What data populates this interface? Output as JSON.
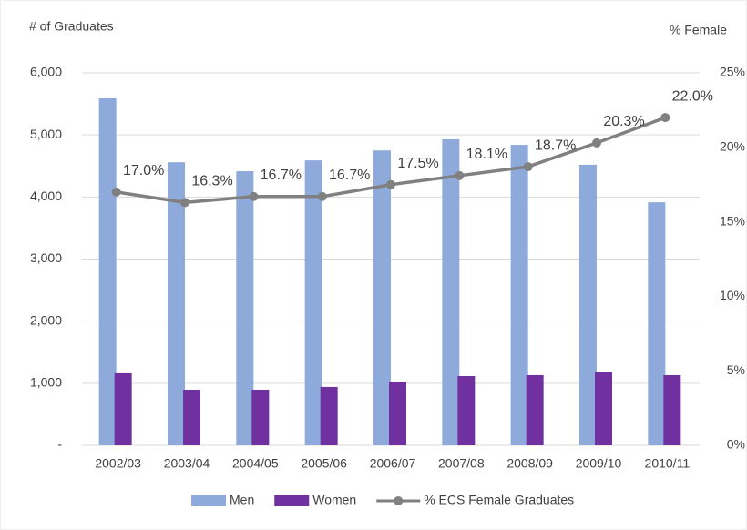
{
  "chart_data": {
    "type": "bar",
    "y_axis_label": "# of Graduates",
    "y2_axis_label": "% Female",
    "categories": [
      "2002/03",
      "2003/04",
      "2004/05",
      "2005/06",
      "2006/07",
      "2007/08",
      "2008/09",
      "2009/10",
      "2010/11"
    ],
    "series": [
      {
        "name": "Men",
        "color": "#8eaadb",
        "values": [
          5590,
          4560,
          4415,
          4590,
          4750,
          4930,
          4840,
          4520,
          3915
        ]
      },
      {
        "name": "Women",
        "color": "#7030a0",
        "values": [
          1160,
          895,
          895,
          940,
          1025,
          1115,
          1130,
          1175,
          1130
        ]
      },
      {
        "name": "% ECS Female Graduates",
        "color": "#808080",
        "type": "line",
        "axis": "y2",
        "values": [
          17.0,
          16.3,
          16.7,
          16.7,
          17.5,
          18.1,
          18.7,
          20.3,
          22.0
        ],
        "value_labels": [
          "17.0%",
          "16.3%",
          "16.7%",
          "16.7%",
          "17.5%",
          "18.1%",
          "18.7%",
          "20.3%",
          "22.0%"
        ]
      }
    ],
    "ylim": [
      0,
      6000
    ],
    "yticks": [
      {
        "value": 0,
        "label": "-"
      },
      {
        "value": 1000,
        "label": "1,000"
      },
      {
        "value": 2000,
        "label": "2,000"
      },
      {
        "value": 3000,
        "label": "3,000"
      },
      {
        "value": 4000,
        "label": "4,000"
      },
      {
        "value": 5000,
        "label": "5,000"
      },
      {
        "value": 6000,
        "label": "6,000"
      }
    ],
    "y2lim": [
      0,
      25
    ],
    "y2ticks": [
      {
        "value": 0,
        "label": "0%"
      },
      {
        "value": 5,
        "label": "5%"
      },
      {
        "value": 10,
        "label": "10%"
      },
      {
        "value": 15,
        "label": "15%"
      },
      {
        "value": 20,
        "label": "20%"
      },
      {
        "value": 25,
        "label": "25%"
      }
    ],
    "grid": true
  }
}
